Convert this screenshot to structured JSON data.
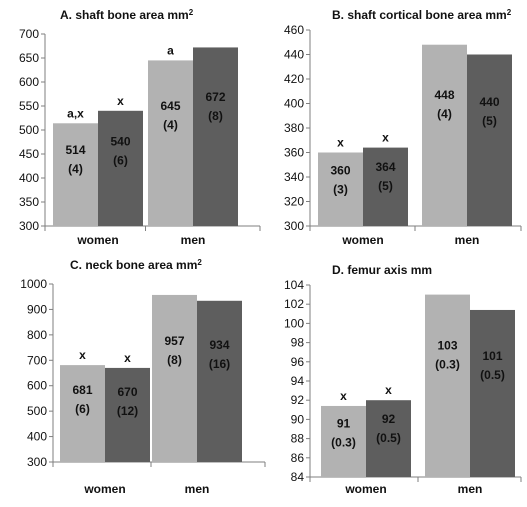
{
  "chart_data": [
    {
      "type": "bar",
      "title": "A. shaft bone area mm",
      "title_sup": "2",
      "categories": [
        "women",
        "men"
      ],
      "ylim": [
        300,
        700
      ],
      "yticks": [
        "300",
        "350",
        "400",
        "450",
        "500",
        "550",
        "600",
        "650",
        "700"
      ],
      "series": [
        {
          "values": [
            514,
            645
          ],
          "labels": [
            "514",
            "645"
          ],
          "sub_labels": [
            "(4)",
            "(4)"
          ],
          "annotations": [
            "a,x",
            "a"
          ],
          "color": "#b2b2b2"
        },
        {
          "values": [
            540,
            672
          ],
          "labels": [
            "540",
            "672"
          ],
          "sub_labels": [
            "(6)",
            "(8)"
          ],
          "annotations": [
            "x",
            ""
          ],
          "color": "#5e5e5e"
        }
      ],
      "grid": false,
      "legend": "none"
    },
    {
      "type": "bar",
      "title": "B.  shaft cortical bone area mm",
      "title_sup": "2",
      "categories": [
        "women",
        "men"
      ],
      "ylim": [
        300,
        460
      ],
      "yticks": [
        "300",
        "320",
        "340",
        "360",
        "380",
        "400",
        "420",
        "440",
        "460"
      ],
      "series": [
        {
          "values": [
            360,
            448
          ],
          "labels": [
            "360",
            "448"
          ],
          "sub_labels": [
            "(3)",
            "(4)"
          ],
          "annotations": [
            "x",
            ""
          ],
          "color": "#b2b2b2"
        },
        {
          "values": [
            364,
            440
          ],
          "labels": [
            "364",
            "440"
          ],
          "sub_labels": [
            "(5)",
            "(5)"
          ],
          "annotations": [
            "x",
            ""
          ],
          "color": "#5e5e5e"
        }
      ],
      "grid": false,
      "legend": "none"
    },
    {
      "type": "bar",
      "title": "C. neck bone area mm",
      "title_sup": "2",
      "categories": [
        "women",
        "men"
      ],
      "ylim": [
        300,
        1000
      ],
      "yticks": [
        "300",
        "400",
        "500",
        "600",
        "700",
        "800",
        "900",
        "1000"
      ],
      "series": [
        {
          "values": [
            681,
            957
          ],
          "labels": [
            "681",
            "957"
          ],
          "sub_labels": [
            "(6)",
            "(8)"
          ],
          "annotations": [
            "x",
            ""
          ],
          "color": "#b2b2b2"
        },
        {
          "values": [
            670,
            934
          ],
          "labels": [
            "670",
            "934"
          ],
          "sub_labels": [
            "(12)",
            "(16)"
          ],
          "annotations": [
            "x",
            ""
          ],
          "color": "#5e5e5e"
        }
      ],
      "grid": false,
      "legend": "none"
    },
    {
      "type": "bar",
      "title": "D. femur axis mm",
      "title_sup": "",
      "categories": [
        "women",
        "men"
      ],
      "ylim": [
        84,
        104
      ],
      "yticks": [
        "84",
        "86",
        "88",
        "90",
        "92",
        "94",
        "96",
        "98",
        "100",
        "102",
        "104"
      ],
      "series": [
        {
          "values": [
            91.4,
            103
          ],
          "labels": [
            "91",
            "103"
          ],
          "sub_labels": [
            "(0.3)",
            "(0.3)"
          ],
          "annotations": [
            "x",
            ""
          ],
          "color": "#b2b2b2"
        },
        {
          "values": [
            92,
            101.4
          ],
          "labels": [
            "92",
            "101"
          ],
          "sub_labels": [
            "(0.5)",
            "(0.5)"
          ],
          "annotations": [
            "x",
            ""
          ],
          "color": "#5e5e5e"
        }
      ],
      "grid": false,
      "legend": "none"
    }
  ]
}
